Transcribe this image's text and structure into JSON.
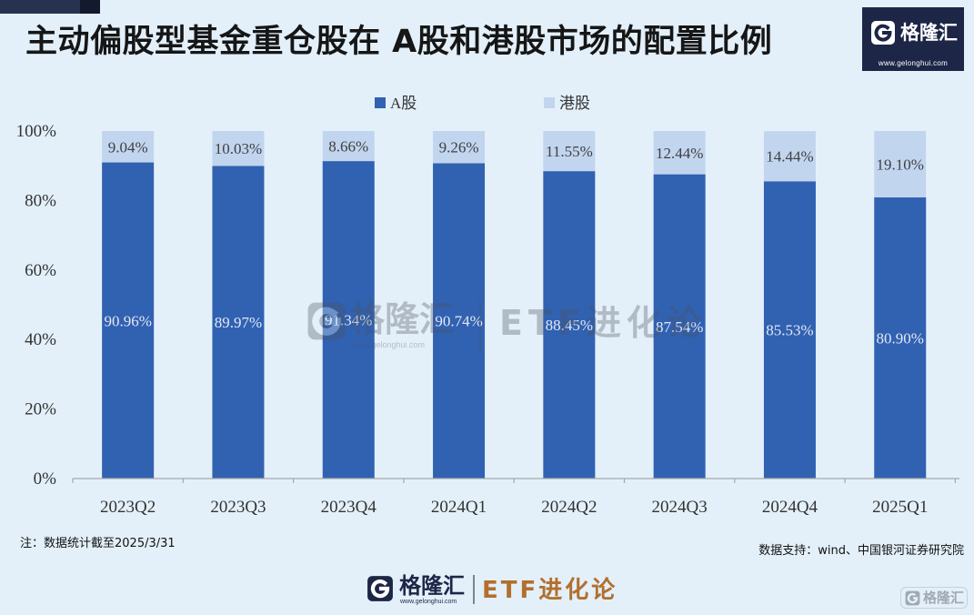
{
  "brand": {
    "logo_name": "格隆汇",
    "logo_url": "www.gelonghui.com",
    "column_name": "ETF进化论",
    "icon": "gelonghui-g-icon",
    "navy": "#1e2647",
    "column_color": "#b26f2d"
  },
  "chart_data": {
    "type": "bar",
    "stacked": true,
    "title": "主动偏股型基金重仓股在 A股和港股市场的配置比例",
    "xlabel": "",
    "ylabel": "",
    "categories": [
      "2023Q2",
      "2023Q3",
      "2023Q4",
      "2024Q1",
      "2024Q2",
      "2024Q3",
      "2024Q4",
      "2025Q1"
    ],
    "series": [
      {
        "name": "A股",
        "values": [
          90.96,
          89.97,
          91.34,
          90.74,
          88.45,
          87.54,
          85.53,
          80.9
        ],
        "labels": [
          "90.96%",
          "89.97%",
          "91.34%",
          "90.74%",
          "88.45%",
          "87.54%",
          "85.53%",
          "80.90%"
        ],
        "color": "#3161b1",
        "label_color": "#e2e8f4"
      },
      {
        "name": "港股",
        "values": [
          9.04,
          10.03,
          8.66,
          9.26,
          11.55,
          12.44,
          14.44,
          19.1
        ],
        "labels": [
          "9.04%",
          "10.03%",
          "8.66%",
          "9.26%",
          "11.55%",
          "12.44%",
          "14.44%",
          "19.10%"
        ],
        "color": "#c2d5ef",
        "label_color": "#404040"
      }
    ],
    "ylim": [
      0,
      100
    ],
    "y_ticks": [
      0,
      20,
      40,
      60,
      80,
      100
    ],
    "y_tick_labels": [
      "0%",
      "20%",
      "40%",
      "60%",
      "80%",
      "100%"
    ],
    "grid": false,
    "legend": "top-center"
  },
  "notes": {
    "footnote": "注：数据统计截至2025/3/31",
    "source": "数据支持：wind、中国银河证券研究院"
  }
}
